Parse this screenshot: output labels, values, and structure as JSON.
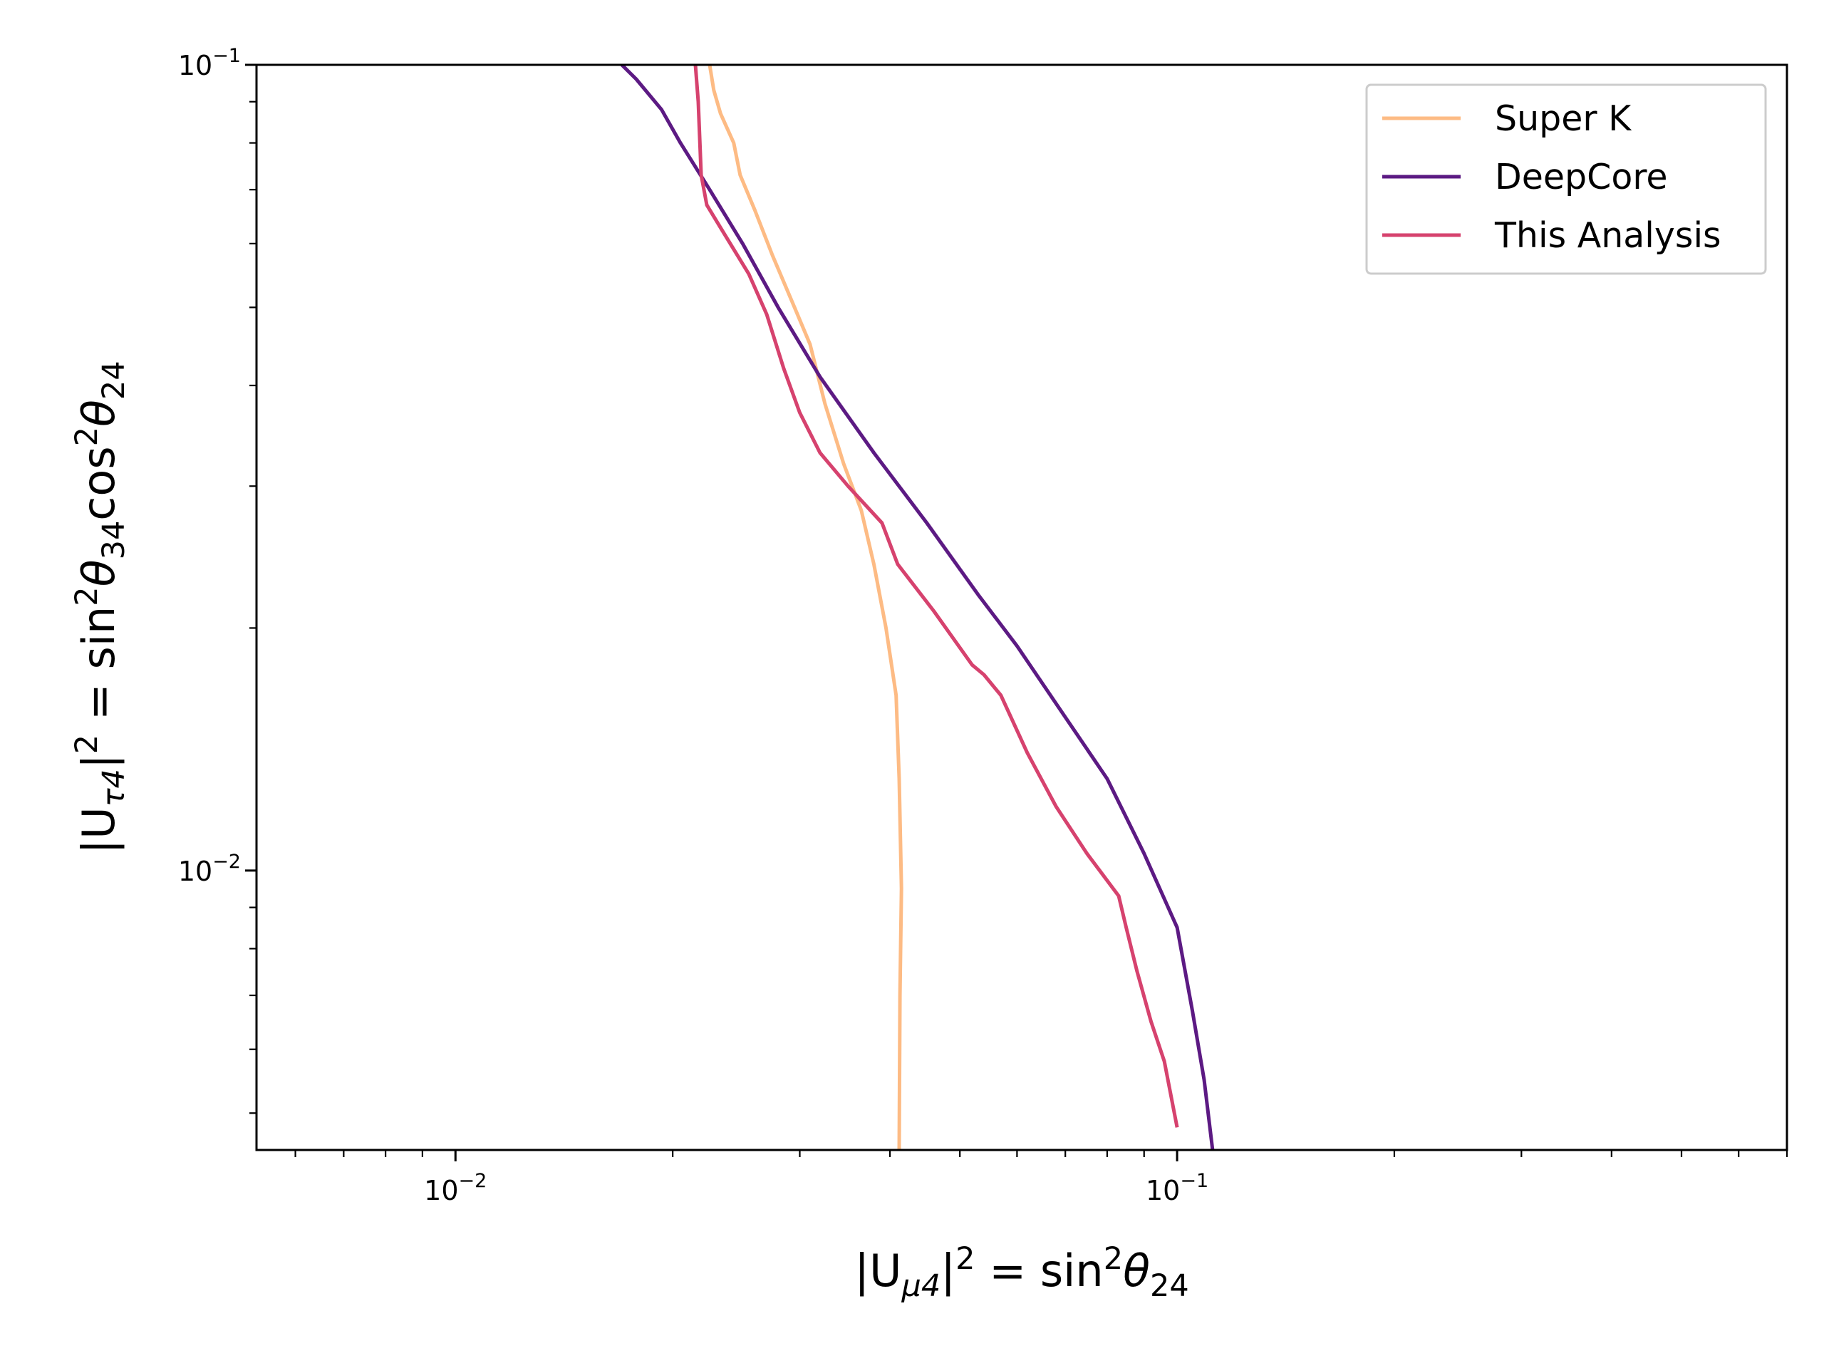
{
  "chart_data": {
    "type": "line",
    "xlabel": {
      "base": "|U",
      "sub": "μ4",
      "mid": "|",
      "sup": "2",
      "rest": " = sin",
      "sup2": "2",
      "theta": "θ",
      "sub2": "24"
    },
    "ylabel": {
      "base": "|U",
      "sub": "τ4",
      "mid": "|",
      "sup": "2",
      "rest": " = sin",
      "sup2": "2",
      "theta": "θ",
      "sub2": "34",
      "cos": "cos",
      "sup3": "2",
      "theta2": "θ",
      "sub3": "24"
    },
    "xscale": "log",
    "yscale": "log",
    "xlim": [
      0.0053,
      0.7
    ],
    "ylim": [
      0.0045,
      0.1
    ],
    "xticks": [
      {
        "value": 0.01,
        "base": "10",
        "exp": "−2"
      },
      {
        "value": 0.1,
        "base": "10",
        "exp": "−1"
      }
    ],
    "yticks": [
      {
        "value": 0.01,
        "base": "10",
        "exp": "−2"
      },
      {
        "value": 0.1,
        "base": "10",
        "exp": "−1"
      }
    ],
    "grid": false,
    "legend_position": "top-right",
    "series": [
      {
        "name": "Super K",
        "color": "#fdbb84",
        "points": [
          [
            0.0225,
            0.1
          ],
          [
            0.0228,
            0.093
          ],
          [
            0.0233,
            0.087
          ],
          [
            0.0243,
            0.08
          ],
          [
            0.0248,
            0.073
          ],
          [
            0.026,
            0.066
          ],
          [
            0.0275,
            0.058
          ],
          [
            0.0295,
            0.05
          ],
          [
            0.031,
            0.045
          ],
          [
            0.0325,
            0.038
          ],
          [
            0.0345,
            0.032
          ],
          [
            0.0365,
            0.028
          ],
          [
            0.038,
            0.024
          ],
          [
            0.0395,
            0.02
          ],
          [
            0.0408,
            0.0165
          ],
          [
            0.0412,
            0.013
          ],
          [
            0.0415,
            0.0095
          ],
          [
            0.0413,
            0.007
          ],
          [
            0.0412,
            0.0045
          ]
        ]
      },
      {
        "name": "DeepCore",
        "color": "#5c1a83",
        "points": [
          [
            0.017,
            0.1
          ],
          [
            0.0178,
            0.096
          ],
          [
            0.0193,
            0.088
          ],
          [
            0.0205,
            0.08
          ],
          [
            0.0225,
            0.07
          ],
          [
            0.025,
            0.06
          ],
          [
            0.028,
            0.05
          ],
          [
            0.032,
            0.041
          ],
          [
            0.038,
            0.033
          ],
          [
            0.045,
            0.027
          ],
          [
            0.053,
            0.022
          ],
          [
            0.06,
            0.019
          ],
          [
            0.07,
            0.0155
          ],
          [
            0.08,
            0.013
          ],
          [
            0.09,
            0.0105
          ],
          [
            0.1,
            0.0085
          ],
          [
            0.105,
            0.0067
          ],
          [
            0.109,
            0.0055
          ],
          [
            0.112,
            0.0045
          ]
        ]
      },
      {
        "name": "This Analysis",
        "color": "#d6426e",
        "points": [
          [
            0.0215,
            0.1
          ],
          [
            0.0217,
            0.09
          ],
          [
            0.0219,
            0.073
          ],
          [
            0.0223,
            0.067
          ],
          [
            0.0235,
            0.062
          ],
          [
            0.0255,
            0.055
          ],
          [
            0.027,
            0.049
          ],
          [
            0.0285,
            0.042
          ],
          [
            0.03,
            0.037
          ],
          [
            0.032,
            0.033
          ],
          [
            0.035,
            0.03
          ],
          [
            0.039,
            0.027
          ],
          [
            0.041,
            0.024
          ],
          [
            0.046,
            0.021
          ],
          [
            0.052,
            0.018
          ],
          [
            0.054,
            0.0175
          ],
          [
            0.057,
            0.0165
          ],
          [
            0.062,
            0.014
          ],
          [
            0.068,
            0.012
          ],
          [
            0.075,
            0.0105
          ],
          [
            0.083,
            0.0093
          ],
          [
            0.085,
            0.0085
          ],
          [
            0.088,
            0.0075
          ],
          [
            0.092,
            0.0065
          ],
          [
            0.096,
            0.0058
          ],
          [
            0.1,
            0.0048
          ]
        ]
      }
    ]
  }
}
